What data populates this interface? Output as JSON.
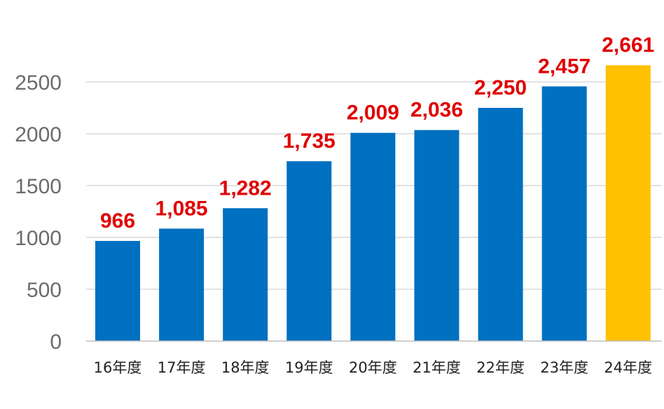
{
  "chart_data": {
    "type": "bar",
    "categories": [
      "16年度",
      "17年度",
      "18年度",
      "19年度",
      "20年度",
      "21年度",
      "22年度",
      "23年度",
      "24年度"
    ],
    "values": [
      966,
      1085,
      1282,
      1735,
      2009,
      2036,
      2250,
      2457,
      2661
    ],
    "data_labels": [
      "966",
      "1,085",
      "1,282",
      "1,735",
      "2,009",
      "2,036",
      "2,250",
      "2,457",
      "2,661"
    ],
    "yticks": [
      0,
      500,
      1000,
      1500,
      2000,
      2500
    ],
    "ylim": [
      0,
      2661
    ],
    "grid": true,
    "colors": {
      "bar": "#0070c0",
      "highlight_bar": "#ffc000",
      "data_label": "#e00000",
      "grid": "#d9d9d9",
      "axis": "#bfbfbf"
    },
    "highlight_index": 8
  }
}
